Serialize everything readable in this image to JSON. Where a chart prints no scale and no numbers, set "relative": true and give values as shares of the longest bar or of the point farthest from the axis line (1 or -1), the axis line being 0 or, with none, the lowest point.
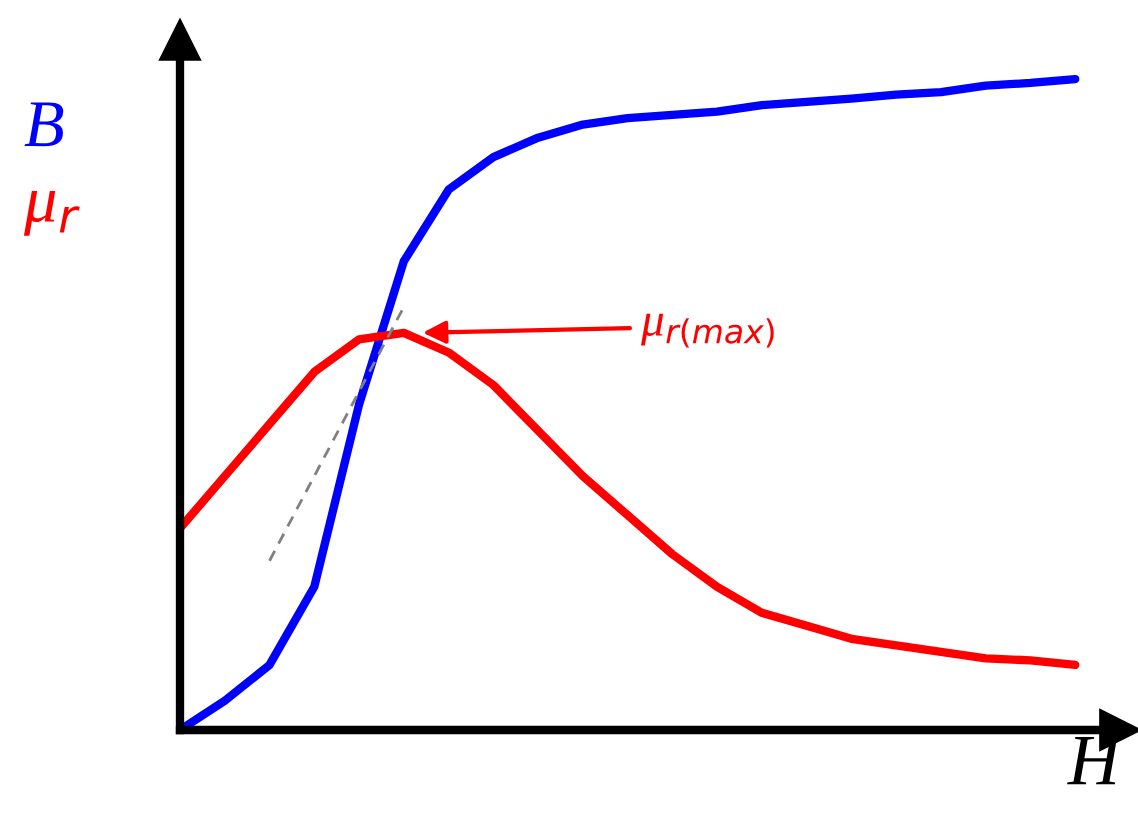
{
  "chart_data": {
    "type": "line",
    "relative": true,
    "xlabel": "H",
    "categories": [
      null,
      null,
      null,
      null,
      null,
      null,
      null,
      null,
      null,
      null,
      null,
      null,
      null,
      null,
      null,
      null,
      null,
      null,
      null,
      null,
      null
    ],
    "series": [
      {
        "name": "B",
        "color": "#0000ff",
        "values": [
          0,
          0.045,
          0.1,
          0.22,
          0.5,
          0.72,
          0.83,
          0.88,
          0.91,
          0.93,
          0.94,
          0.945,
          0.95,
          0.96,
          0.965,
          0.97,
          0.976,
          0.98,
          0.99,
          0.994,
          1
        ]
      },
      {
        "name": "μ$_{r}$",
        "color": "#ff0000",
        "values": [
          0.31,
          0.39,
          0.47,
          0.55,
          0.6,
          0.61,
          0.58,
          0.53,
          0.46,
          0.39,
          0.33,
          0.27,
          0.22,
          0.18,
          0.16,
          0.14,
          0.13,
          0.12,
          0.11,
          0.107,
          0.1
        ]
      },
      {
        "color": "#808080",
        "line_style": "dashed",
        "values": [
          null,
          null,
          0.26,
          0.39,
          0.52,
          0.65,
          null,
          null,
          null,
          null,
          null,
          null,
          null,
          null,
          null,
          null,
          null,
          null,
          null,
          null,
          null
        ]
      }
    ],
    "annotations": [
      "μ$_{r(max)}$"
    ],
    "grid": false,
    "legend": false
  }
}
